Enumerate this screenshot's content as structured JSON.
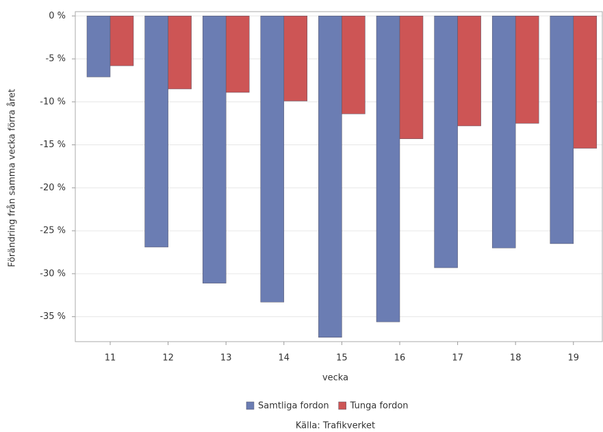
{
  "chart_data": {
    "type": "bar",
    "y_label": "Förändring från samma vecka förra året",
    "x_label": "vecka",
    "source": "Källa: Trafikverket",
    "categories": [
      "11",
      "12",
      "13",
      "14",
      "15",
      "16",
      "17",
      "18",
      "19"
    ],
    "series": [
      {
        "name": "Samtliga fordon",
        "color": "#6b7db3",
        "values": [
          -7.1,
          -26.9,
          -31.1,
          -33.3,
          -37.4,
          -35.6,
          -29.3,
          -27.0,
          -26.5
        ]
      },
      {
        "name": "Tunga fordon",
        "color": "#cd5555",
        "values": [
          -5.8,
          -8.5,
          -8.9,
          -9.9,
          -11.4,
          -14.3,
          -12.8,
          -12.5,
          -15.4
        ]
      }
    ],
    "ylim": [
      0.5,
      -37.9
    ],
    "yticks": [
      {
        "value": 0,
        "label": "0 %"
      },
      {
        "value": -5,
        "label": "-5 %"
      },
      {
        "value": -10,
        "label": "-10 %"
      },
      {
        "value": -15,
        "label": "-15 %"
      },
      {
        "value": -20,
        "label": "-20 %"
      },
      {
        "value": -25,
        "label": "-25 %"
      },
      {
        "value": -30,
        "label": "-30 %"
      },
      {
        "value": -35,
        "label": "-35 %"
      }
    ],
    "grid": true
  }
}
